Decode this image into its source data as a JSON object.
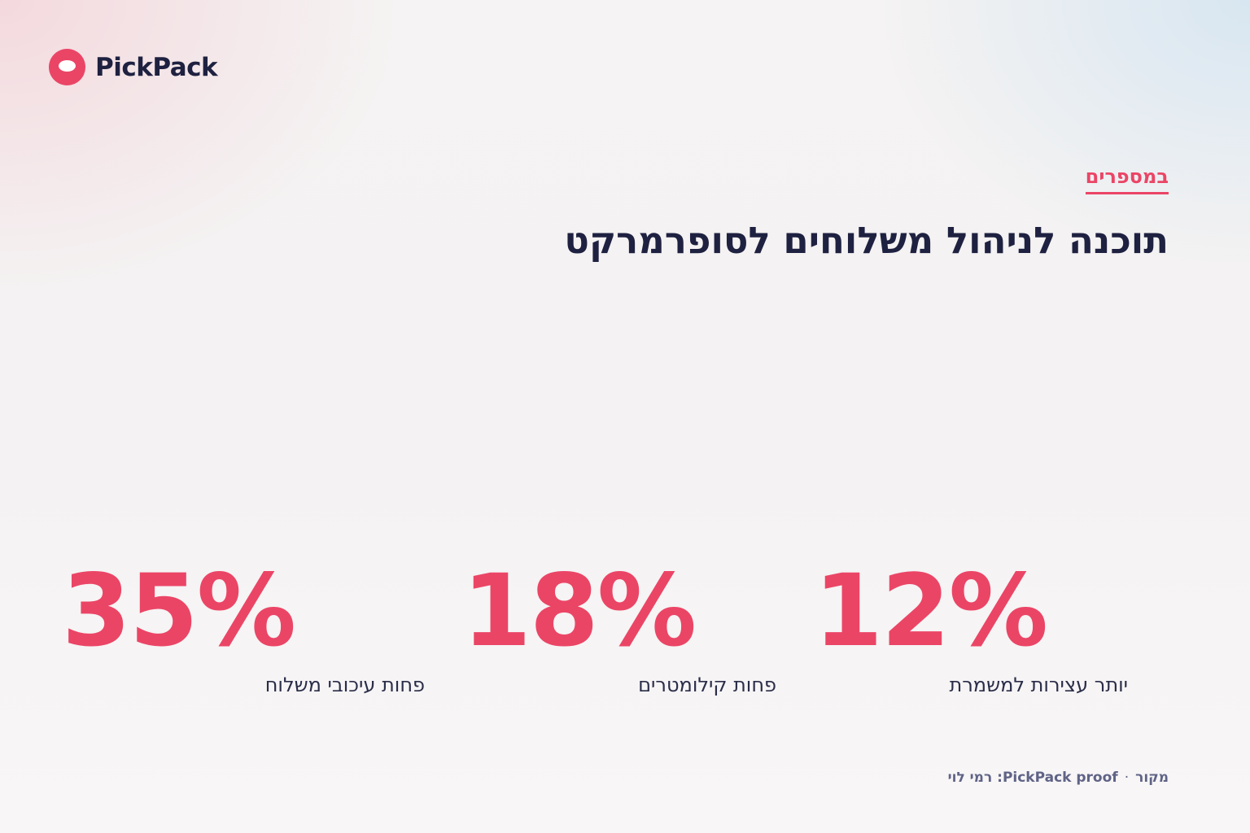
{
  "brand": {
    "name": "PickPack",
    "accent_color": "#eb4566",
    "text_color": "#1e2140"
  },
  "eyebrow": "במספרים",
  "title": "תוכנה לניהול משלוחים לסופרמרקט",
  "stats": [
    {
      "value": "12%",
      "label": "יותר עצירות למשמרת"
    },
    {
      "value": "18%",
      "label": "פחות קילומטרים"
    },
    {
      "value": "35%",
      "label": "פחות עיכובי משלוח"
    }
  ],
  "source": {
    "label": "מקור",
    "separator": "·",
    "text": "PickPack proof: רמי לוי"
  }
}
